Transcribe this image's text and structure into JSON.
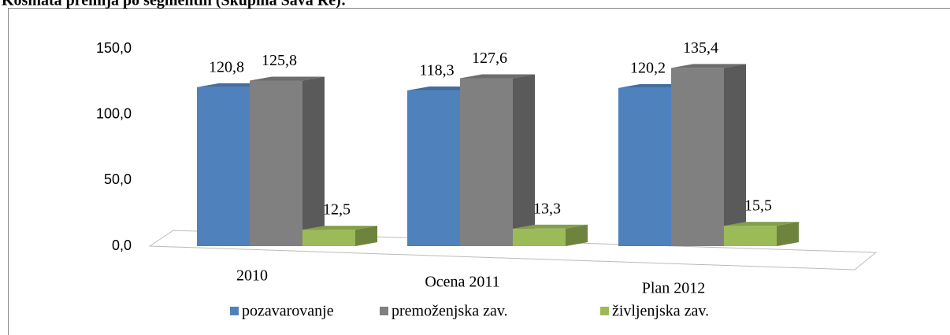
{
  "chart_data": {
    "type": "bar3d",
    "title": "Kosmata premija po segmentih (Skupina Sava Re):",
    "categories": [
      "2010",
      "Ocena 2011",
      "Plan 2012"
    ],
    "series": [
      {
        "name": "pozavarovanje",
        "color": "#4f81bd",
        "values": [
          120.8,
          118.3,
          120.2
        ],
        "value_labels": [
          "120,8",
          "118,3",
          "120,2"
        ]
      },
      {
        "name": "premoženjska zav.",
        "color": "#808080",
        "values": [
          125.8,
          127.6,
          135.4
        ],
        "value_labels": [
          "125,8",
          "127,6",
          "135,4"
        ]
      },
      {
        "name": "življenjska zav.",
        "color": "#9bbb59",
        "values": [
          12.5,
          13.3,
          15.5
        ],
        "value_labels": [
          "12,5",
          "13,3",
          "15,5"
        ]
      }
    ],
    "ylim": [
      0,
      150
    ],
    "yticks": [
      {
        "value": 0,
        "label": "0,0"
      },
      {
        "value": 50,
        "label": "50,0"
      },
      {
        "value": 100,
        "label": "100,0"
      },
      {
        "value": 150,
        "label": "150,0"
      }
    ],
    "legend": "bottom"
  }
}
